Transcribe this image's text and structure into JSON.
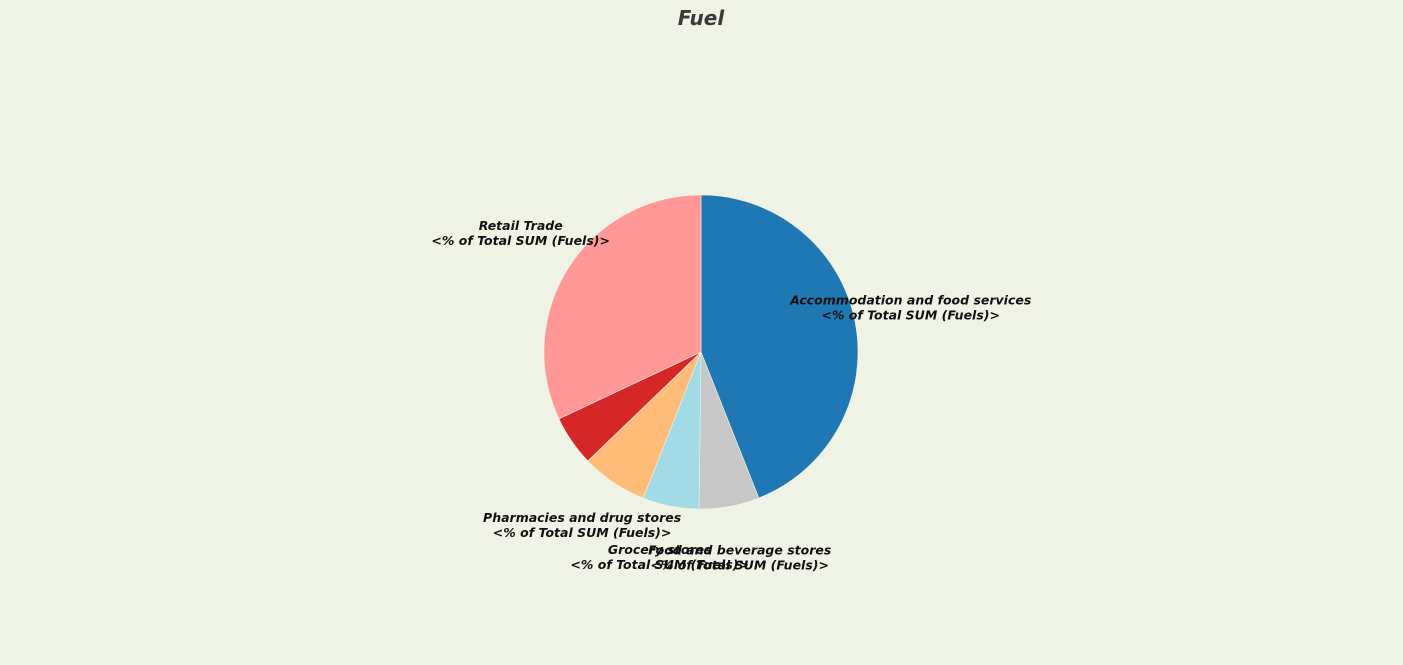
{
  "chart_data": {
    "type": "pie",
    "title": "Fuel",
    "start_angle_deg": 90,
    "direction": "clockwise",
    "legend": "none",
    "slices": [
      {
        "name": "Accommodation and food services",
        "value": 44.0,
        "color": "#1f77b4",
        "sublabel": "<% of Total SUM (Fuels)>"
      },
      {
        "name": "Food and beverage stores",
        "value": 6.2,
        "color": "#c7c7c7",
        "sublabel": "<% of Total SUM (Fuels)>"
      },
      {
        "name": "Grocery stores",
        "value": 5.8,
        "color": "#a2dae5",
        "sublabel": "<% of Total SUM (Fuels)>"
      },
      {
        "name": "Pharmacies and drug stores",
        "value": 6.8,
        "color": "#ffbb78",
        "sublabel": "<% of Total SUM (Fuels)>"
      },
      {
        "name": "",
        "value": 5.2,
        "color": "#d62728",
        "sublabel": ""
      },
      {
        "name": "Retail Trade",
        "value": 32.0,
        "color": "#ff9896",
        "sublabel": "<% of Total SUM (Fuels)>"
      }
    ]
  }
}
